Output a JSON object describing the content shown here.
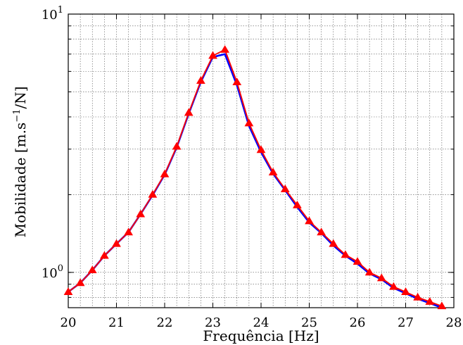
{
  "chart_data": {
    "type": "line",
    "title": "",
    "xlabel": "Frequência [Hz]",
    "ylabel": "Mobilidade [m.s",
    "ylabel_exponent": "−1",
    "ylabel_suffix": "/N]",
    "xlim": [
      20,
      28
    ],
    "ylim": [
      0.73,
      10
    ],
    "yscale": "log",
    "grid": true,
    "x_ticks": [
      "20",
      "21",
      "22",
      "23",
      "24",
      "25",
      "26",
      "27",
      "28"
    ],
    "y_ticks": [
      {
        "value": 1,
        "base": "10",
        "exp": "0"
      },
      {
        "value": 10,
        "base": "10",
        "exp": "1"
      }
    ],
    "series": [
      {
        "color": "#0000ff",
        "marker": "none",
        "x": [
          20,
          20.25,
          20.5,
          20.75,
          21,
          21.25,
          21.5,
          21.75,
          22,
          22.25,
          22.5,
          22.75,
          23,
          23.25,
          23.5,
          23.75,
          24,
          24.25,
          24.5,
          24.75,
          25,
          25.25,
          25.5,
          25.75,
          26,
          26.25,
          26.5,
          26.75,
          27,
          27.25,
          27.5,
          27.75
        ],
        "y": [
          0.84,
          0.91,
          1.02,
          1.16,
          1.29,
          1.43,
          1.68,
          1.99,
          2.39,
          3.05,
          4.12,
          5.46,
          6.82,
          7.0,
          5.3,
          3.69,
          2.92,
          2.41,
          2.08,
          1.79,
          1.56,
          1.42,
          1.27,
          1.16,
          1.08,
          0.99,
          0.94,
          0.87,
          0.83,
          0.79,
          0.76,
          0.73
        ]
      },
      {
        "color": "#ff0000",
        "marker": "triangle",
        "x": [
          20,
          20.25,
          20.5,
          20.75,
          21,
          21.25,
          21.5,
          21.75,
          22,
          22.25,
          22.5,
          22.75,
          23,
          23.25,
          23.5,
          23.75,
          24,
          24.25,
          24.5,
          24.75,
          25,
          25.25,
          25.5,
          25.75,
          26,
          26.25,
          26.5,
          26.75,
          27,
          27.25,
          27.5,
          27.75
        ],
        "y": [
          0.84,
          0.91,
          1.02,
          1.16,
          1.29,
          1.43,
          1.68,
          2.0,
          2.4,
          3.07,
          4.15,
          5.52,
          6.9,
          7.28,
          5.45,
          3.78,
          2.98,
          2.44,
          2.1,
          1.82,
          1.58,
          1.43,
          1.29,
          1.17,
          1.1,
          1.0,
          0.95,
          0.88,
          0.84,
          0.8,
          0.77,
          0.74
        ]
      }
    ]
  }
}
